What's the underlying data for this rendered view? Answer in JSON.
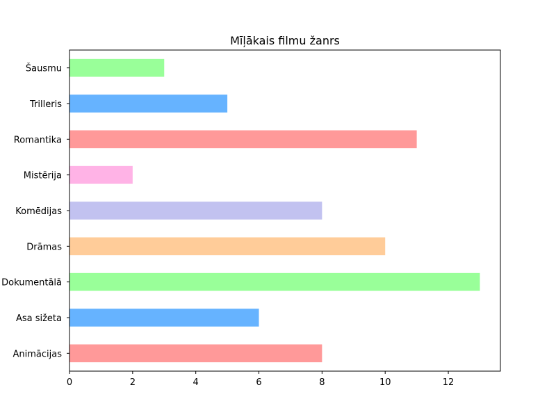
{
  "chart_data": {
    "type": "bar",
    "orientation": "horizontal",
    "title": "Mīļākais filmu žanrs",
    "xlabel": "",
    "ylabel": "",
    "categories": [
      "Animācijas",
      "Asa sižeta",
      "Dokumentālā",
      "Drāmas",
      "Komēdijas",
      "Mistērija",
      "Romantika",
      "Trilleris",
      "Šausmu"
    ],
    "values": [
      8,
      6,
      13,
      10,
      8,
      2,
      11,
      5,
      3
    ],
    "colors": [
      "#ff9999",
      "#66b3ff",
      "#99ff99",
      "#ffcc99",
      "#c2c2f0",
      "#ffb3e6",
      "#ff9999",
      "#66b3ff",
      "#99ff99"
    ],
    "xlim": [
      0,
      13.65
    ],
    "xticks": [
      0,
      2,
      4,
      6,
      8,
      10,
      12
    ],
    "grid": false,
    "legend": "none"
  }
}
